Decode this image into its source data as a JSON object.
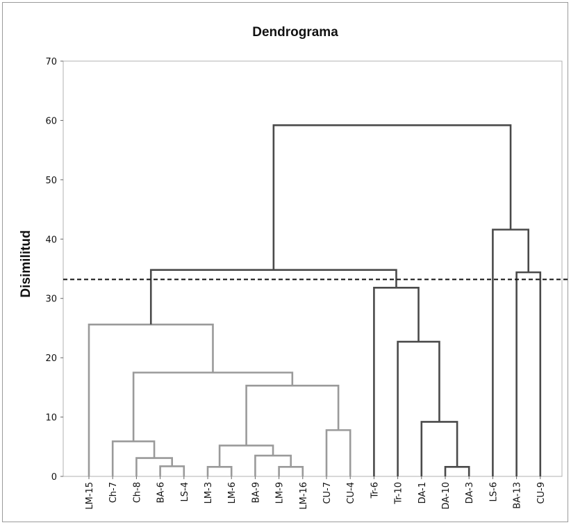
{
  "chart_data": {
    "type": "dendrogram",
    "title": "Dendrograma",
    "ylabel": "Disimilitud",
    "xlabel": "",
    "ylim": [
      0,
      70
    ],
    "yticks": [
      0,
      10,
      20,
      30,
      40,
      50,
      60,
      70
    ],
    "grid": false,
    "cut_line": 33.2,
    "colors": {
      "group_a": "#9a9a9a",
      "group_b": "#4a4a4a",
      "cut_line": "#111111"
    },
    "leaves": [
      "LM-15",
      "Ch-7",
      "Ch-8",
      "BA-6",
      "LS-4",
      "LM-3",
      "LM-6",
      "BA-9",
      "LM-9",
      "LM-16",
      "CU-7",
      "CU-4",
      "Tr-6",
      "Tr-10",
      "DA-1",
      "DA-10",
      "DA-3",
      "LS-6",
      "BA-13",
      "CU-9"
    ],
    "merges": [
      {
        "left": 3,
        "right": 4,
        "height": 1.7,
        "group": "a"
      },
      {
        "left": 2,
        "right": 20,
        "height": 3.1,
        "group": "a"
      },
      {
        "left": 1,
        "right": 21,
        "height": 5.9,
        "group": "a"
      },
      {
        "left": 5,
        "right": 6,
        "height": 1.6,
        "group": "a"
      },
      {
        "left": 8,
        "right": 9,
        "height": 1.6,
        "group": "a"
      },
      {
        "left": 7,
        "right": 24,
        "height": 3.5,
        "group": "a"
      },
      {
        "left": 23,
        "right": 25,
        "height": 5.2,
        "group": "a"
      },
      {
        "left": 10,
        "right": 11,
        "height": 7.8,
        "group": "a"
      },
      {
        "left": 26,
        "right": 27,
        "height": 15.3,
        "group": "a"
      },
      {
        "left": 22,
        "right": 28,
        "height": 17.5,
        "group": "a"
      },
      {
        "left": 0,
        "right": 29,
        "height": 25.6,
        "group": "a"
      },
      {
        "left": 15,
        "right": 16,
        "height": 1.6,
        "group": "b"
      },
      {
        "left": 14,
        "right": 31,
        "height": 9.2,
        "group": "b"
      },
      {
        "left": 13,
        "right": 32,
        "height": 22.7,
        "group": "b"
      },
      {
        "left": 12,
        "right": 33,
        "height": 31.8,
        "group": "b"
      },
      {
        "left": 30,
        "right": 34,
        "height": 34.8,
        "group": "b"
      },
      {
        "left": 18,
        "right": 19,
        "height": 34.4,
        "group": "b"
      },
      {
        "left": 17,
        "right": 36,
        "height": 41.6,
        "group": "b"
      },
      {
        "left": 35,
        "right": 37,
        "height": 59.2,
        "group": "b"
      }
    ]
  }
}
